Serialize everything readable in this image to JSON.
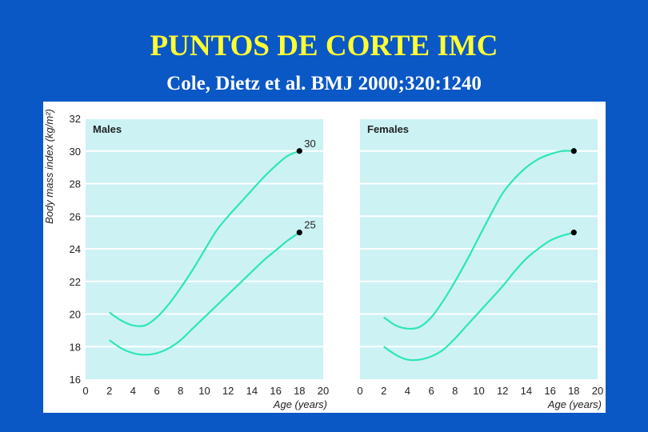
{
  "slide": {
    "title": "PUNTOS DE CORTE IMC",
    "subtitle": "Cole, Dietz et al.  BMJ 2000;320:1240"
  },
  "colors": {
    "background": "#0a57c6",
    "title": "#ffff33",
    "panel": "#ccf2f4",
    "curve": "#2de6b9",
    "grid": "#ffffff",
    "marker": "#000000"
  },
  "chart_data": [
    {
      "type": "line",
      "title": "Males",
      "xlabel": "Age (years)",
      "ylabel": "Body mass index (kg/m²)",
      "xlim": [
        0,
        20
      ],
      "ylim": [
        16,
        32
      ],
      "xticks": [
        0,
        2,
        4,
        6,
        8,
        10,
        12,
        14,
        16,
        18,
        20
      ],
      "yticks": [
        16,
        18,
        20,
        22,
        24,
        26,
        28,
        30,
        32
      ],
      "grid": true,
      "series": [
        {
          "name": "30",
          "x": [
            2,
            3,
            4,
            5,
            6,
            7,
            8,
            9,
            10,
            11,
            12,
            13,
            14,
            15,
            16,
            17,
            18
          ],
          "y": [
            20.1,
            19.6,
            19.3,
            19.3,
            19.8,
            20.6,
            21.6,
            22.7,
            23.9,
            25.1,
            26.0,
            26.8,
            27.6,
            28.4,
            29.1,
            29.7,
            30.0
          ]
        },
        {
          "name": "25",
          "x": [
            2,
            3,
            4,
            5,
            6,
            7,
            8,
            9,
            10,
            11,
            12,
            13,
            14,
            15,
            16,
            17,
            18
          ],
          "y": [
            18.4,
            17.9,
            17.6,
            17.5,
            17.6,
            17.9,
            18.4,
            19.1,
            19.8,
            20.5,
            21.2,
            21.9,
            22.6,
            23.3,
            23.9,
            24.5,
            25.0
          ]
        }
      ],
      "endpoints": [
        {
          "x": 18,
          "y": 30,
          "label": "30"
        },
        {
          "x": 18,
          "y": 25,
          "label": "25"
        }
      ]
    },
    {
      "type": "line",
      "title": "Females",
      "xlabel": "Age (years)",
      "ylabel": "",
      "xlim": [
        0,
        20
      ],
      "ylim": [
        16,
        32
      ],
      "xticks": [
        0,
        2,
        4,
        6,
        8,
        10,
        12,
        14,
        16,
        18,
        20
      ],
      "yticks": [
        16,
        18,
        20,
        22,
        24,
        26,
        28,
        30,
        32
      ],
      "grid": true,
      "series": [
        {
          "name": "",
          "x": [
            2,
            3,
            4,
            5,
            6,
            7,
            8,
            9,
            10,
            11,
            12,
            13,
            14,
            15,
            16,
            17,
            18
          ],
          "y": [
            19.8,
            19.3,
            19.1,
            19.2,
            19.8,
            20.8,
            22.0,
            23.3,
            24.7,
            26.1,
            27.4,
            28.3,
            29.0,
            29.5,
            29.8,
            30.0,
            30.0
          ]
        },
        {
          "name": "",
          "x": [
            2,
            3,
            4,
            5,
            6,
            7,
            8,
            9,
            10,
            11,
            12,
            13,
            14,
            15,
            16,
            17,
            18
          ],
          "y": [
            18.0,
            17.5,
            17.2,
            17.2,
            17.4,
            17.8,
            18.5,
            19.3,
            20.1,
            20.9,
            21.7,
            22.6,
            23.4,
            24.0,
            24.5,
            24.8,
            25.0
          ]
        }
      ],
      "endpoints": [
        {
          "x": 18,
          "y": 30,
          "label": ""
        },
        {
          "x": 18,
          "y": 25,
          "label": ""
        }
      ]
    }
  ]
}
